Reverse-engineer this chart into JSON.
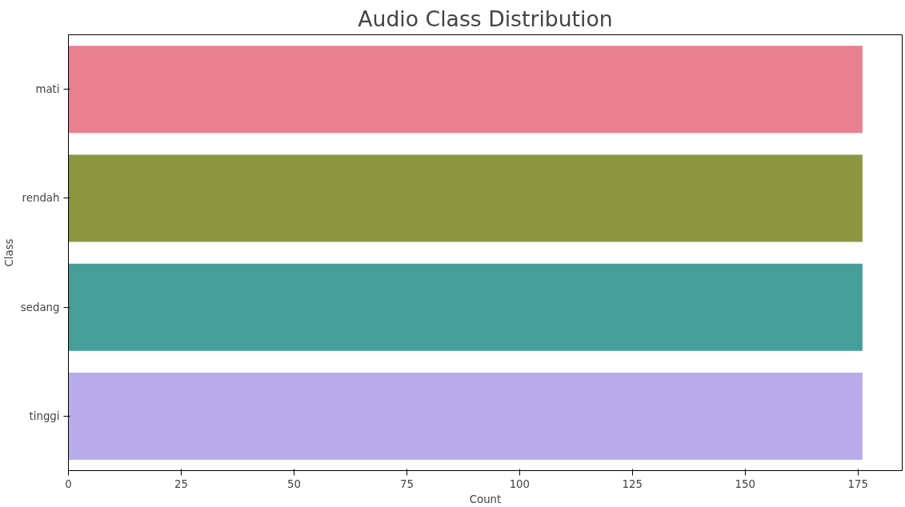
{
  "chart_data": {
    "type": "bar",
    "orientation": "horizontal",
    "title": "Audio Class Distribution",
    "xlabel": "Count",
    "ylabel": "Class",
    "categories": [
      "mati",
      "rendah",
      "sedang",
      "tinggi"
    ],
    "values": [
      176,
      176,
      176,
      176
    ],
    "colors": [
      "#e8808f",
      "#8b9741",
      "#469e98",
      "#b9acea"
    ],
    "xlim": [
      0,
      184.8
    ],
    "xticks": [
      0,
      25,
      50,
      75,
      100,
      125,
      150,
      175
    ],
    "grid": false
  }
}
